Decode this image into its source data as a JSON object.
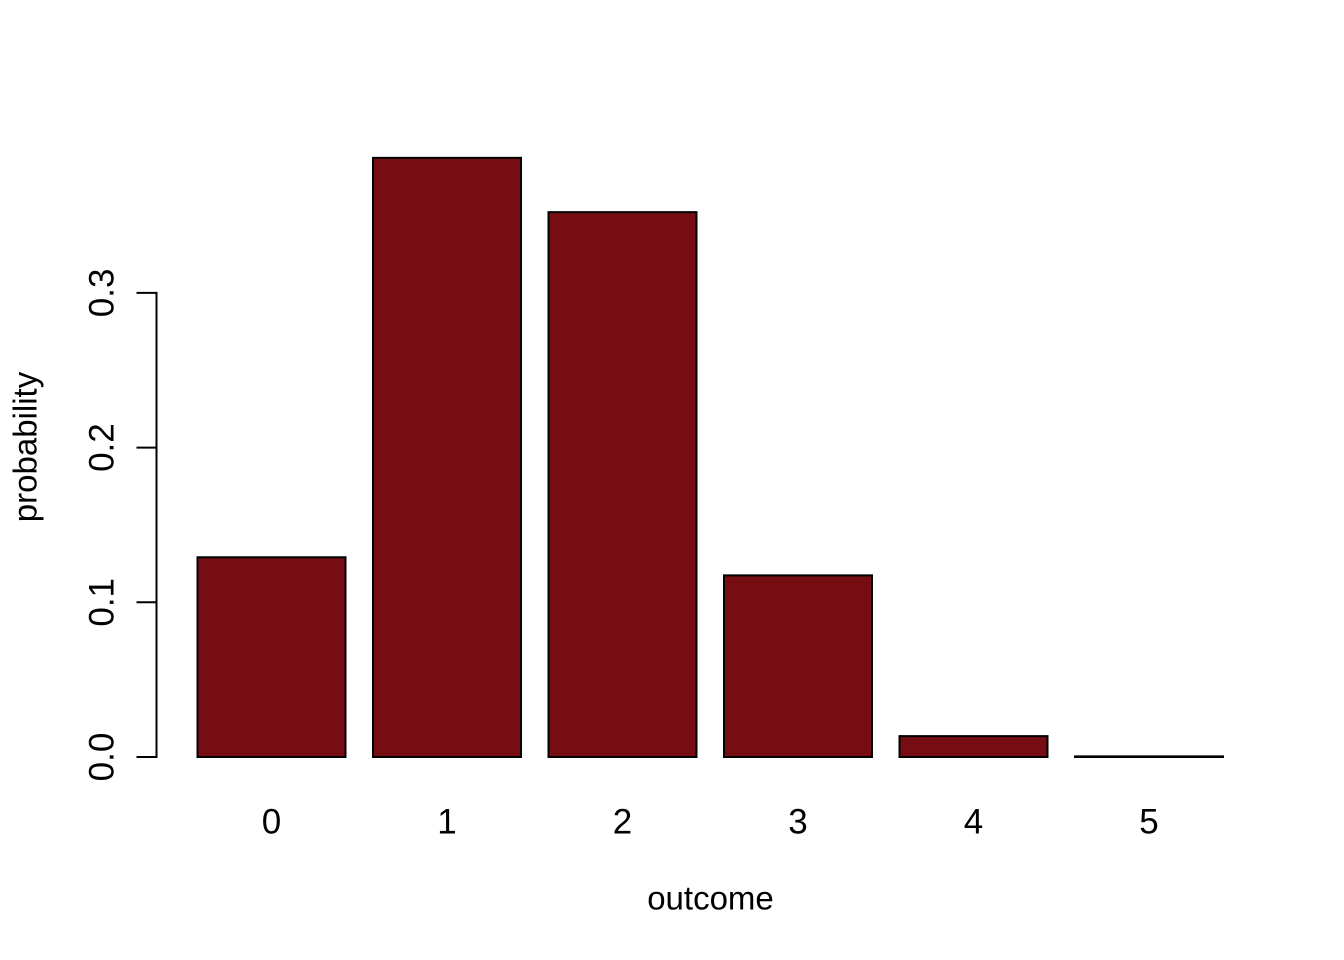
{
  "chart_data": {
    "type": "bar",
    "title": "",
    "xlabel": "outcome",
    "ylabel": "probability",
    "categories": [
      "0",
      "1",
      "2",
      "3",
      "4",
      "5"
    ],
    "values": [
      0.1291,
      0.3873,
      0.3522,
      0.1174,
      0.0135,
      0.0004
    ],
    "ylim": [
      0,
      0.4
    ],
    "yticks": [
      0.0,
      0.1,
      0.2,
      0.3
    ],
    "ytick_labels": [
      "0.0",
      "0.1",
      "0.2",
      "0.3"
    ],
    "grid": false,
    "legend": "none",
    "bar_fill": "#750D12",
    "bar_border": "#000000",
    "axis_color": "#000000",
    "background": "#FFFFFF"
  }
}
